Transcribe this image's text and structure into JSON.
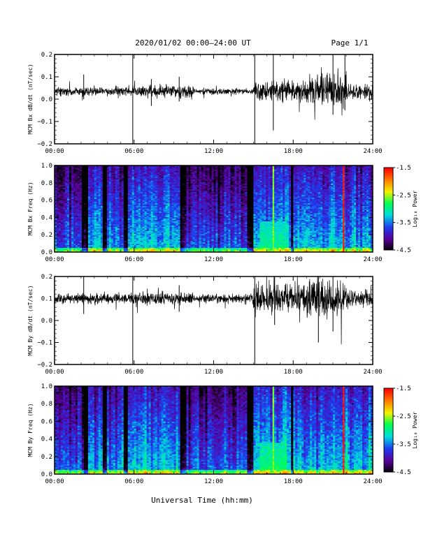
{
  "header": {
    "title": "2020/01/02  00:00–24:00 UT",
    "page": "Page 1/1"
  },
  "x_axis": {
    "label": "Universal Time (hh:mm)",
    "ticks": [
      "00:00",
      "06:00",
      "12:00",
      "18:00",
      "24:00"
    ],
    "range_hours": [
      0,
      24
    ]
  },
  "colorbar": {
    "label": "Log₁₀ Power",
    "ticks": [
      "-1.5",
      "-2.5",
      "-3.5",
      "-4.5"
    ],
    "range": [
      -4.5,
      -1.5
    ],
    "colors": [
      "#000000",
      "#5a009a",
      "#1d3cf0",
      "#00d9e0",
      "#00ff50",
      "#f2f200",
      "#ff7a00",
      "#ff0000"
    ]
  },
  "chart_data": [
    {
      "type": "line",
      "ylabel": "MCM Bx dB/dt (nT/sec)",
      "ylim": [
        -0.2,
        0.2
      ],
      "yticks": [
        "0.2",
        "0.1",
        "0.0",
        "−0.1",
        "−0.2"
      ],
      "baseline": 0.035,
      "activity": [
        {
          "start_h": 0.0,
          "end_h": 6.0,
          "amplitude": 0.02
        },
        {
          "start_h": 6.0,
          "end_h": 10.5,
          "amplitude": 0.03
        },
        {
          "start_h": 10.5,
          "end_h": 15.0,
          "amplitude": 0.015
        },
        {
          "start_h": 15.0,
          "end_h": 19.0,
          "amplitude": 0.05
        },
        {
          "start_h": 19.0,
          "end_h": 22.0,
          "amplitude": 0.08
        },
        {
          "start_h": 22.0,
          "end_h": 24.0,
          "amplitude": 0.035
        }
      ],
      "spikes": [
        {
          "t_h": 5.9,
          "min": -0.2,
          "max": 0.2
        },
        {
          "t_h": 15.1,
          "min": -0.2,
          "max": 0.2
        },
        {
          "t_h": 16.5,
          "min": -0.14,
          "max": 0.2
        },
        {
          "t_h": 2.2,
          "min": 0.0,
          "max": 0.11
        },
        {
          "t_h": 9.4,
          "min": -0.01,
          "max": 0.1
        },
        {
          "t_h": 7.3,
          "min": -0.03,
          "max": 0.09
        },
        {
          "t_h": 21.0,
          "min": -0.07,
          "max": 0.2
        },
        {
          "t_h": 21.9,
          "min": -0.05,
          "max": 0.2
        }
      ]
    },
    {
      "type": "heatmap",
      "ylabel": "MCM Bx Freq (Hz)",
      "ylim": [
        0.0,
        1.0
      ],
      "yticks": [
        "1.0",
        "0.8",
        "0.6",
        "0.4",
        "0.2",
        "0.0"
      ],
      "value_units": "Log10 Power",
      "vmin": -4.5,
      "vmax": -1.5,
      "background_level": -4.3,
      "active_bands": [
        {
          "start_h": 0.0,
          "end_h": 2.0,
          "level": -3.6
        },
        {
          "start_h": 2.6,
          "end_h": 3.6,
          "level": -3.3
        },
        {
          "start_h": 4.0,
          "end_h": 5.2,
          "level": -3.4
        },
        {
          "start_h": 5.6,
          "end_h": 9.5,
          "level": -3.2
        },
        {
          "start_h": 10.0,
          "end_h": 14.5,
          "level": -3.6
        },
        {
          "start_h": 15.0,
          "end_h": 17.8,
          "level": -3.2
        },
        {
          "start_h": 18.0,
          "end_h": 24.0,
          "level": -3.3
        }
      ],
      "low_freq_enhancement": [
        {
          "start_h": 15.5,
          "end_h": 17.5,
          "max_freq": 0.35,
          "level": -2.9
        }
      ],
      "vertical_lines": [
        {
          "t_h": 16.5,
          "level": -2.6
        },
        {
          "t_h": 21.8,
          "level": -1.6
        }
      ]
    },
    {
      "type": "line",
      "ylabel": "MCM By dB/dt (nT/sec)",
      "ylim": [
        -0.2,
        0.2
      ],
      "yticks": [
        "0.2",
        "0.1",
        "0.0",
        "−0.1",
        "−0.2"
      ],
      "baseline": 0.1,
      "activity": [
        {
          "start_h": 0.0,
          "end_h": 6.0,
          "amplitude": 0.025
        },
        {
          "start_h": 6.0,
          "end_h": 10.5,
          "amplitude": 0.03
        },
        {
          "start_h": 10.5,
          "end_h": 15.0,
          "amplitude": 0.02
        },
        {
          "start_h": 15.0,
          "end_h": 19.0,
          "amplitude": 0.07
        },
        {
          "start_h": 19.0,
          "end_h": 22.0,
          "amplitude": 0.08
        },
        {
          "start_h": 22.0,
          "end_h": 24.0,
          "amplitude": 0.04
        }
      ],
      "spikes": [
        {
          "t_h": 5.9,
          "min": -0.2,
          "max": 0.2
        },
        {
          "t_h": 15.1,
          "min": -0.2,
          "max": 0.2
        },
        {
          "t_h": 2.2,
          "min": 0.03,
          "max": 0.2
        },
        {
          "t_h": 9.4,
          "min": 0.04,
          "max": 0.16
        },
        {
          "t_h": 16.6,
          "min": -0.02,
          "max": 0.2
        },
        {
          "t_h": 19.9,
          "min": -0.1,
          "max": 0.2
        },
        {
          "t_h": 21.0,
          "min": -0.05,
          "max": 0.2
        }
      ]
    },
    {
      "type": "heatmap",
      "ylabel": "MCM By Freq (Hz)",
      "ylim": [
        0.0,
        1.0
      ],
      "yticks": [
        "1.0",
        "0.8",
        "0.6",
        "0.4",
        "0.2",
        "0.0"
      ],
      "value_units": "Log10 Power",
      "vmin": -4.5,
      "vmax": -1.5,
      "background_level": -4.3,
      "active_bands": [
        {
          "start_h": 0.0,
          "end_h": 2.0,
          "level": -3.5
        },
        {
          "start_h": 2.6,
          "end_h": 3.6,
          "level": -3.2
        },
        {
          "start_h": 4.0,
          "end_h": 5.2,
          "level": -3.3
        },
        {
          "start_h": 5.6,
          "end_h": 9.5,
          "level": -3.2
        },
        {
          "start_h": 10.0,
          "end_h": 14.5,
          "level": -3.5
        },
        {
          "start_h": 15.0,
          "end_h": 17.8,
          "level": -3.1
        },
        {
          "start_h": 18.0,
          "end_h": 24.0,
          "level": -3.2
        }
      ],
      "low_freq_enhancement": [
        {
          "start_h": 15.5,
          "end_h": 17.5,
          "max_freq": 0.35,
          "level": -2.8
        }
      ],
      "vertical_lines": [
        {
          "t_h": 16.5,
          "level": -2.6
        },
        {
          "t_h": 21.8,
          "level": -1.6
        }
      ]
    }
  ]
}
